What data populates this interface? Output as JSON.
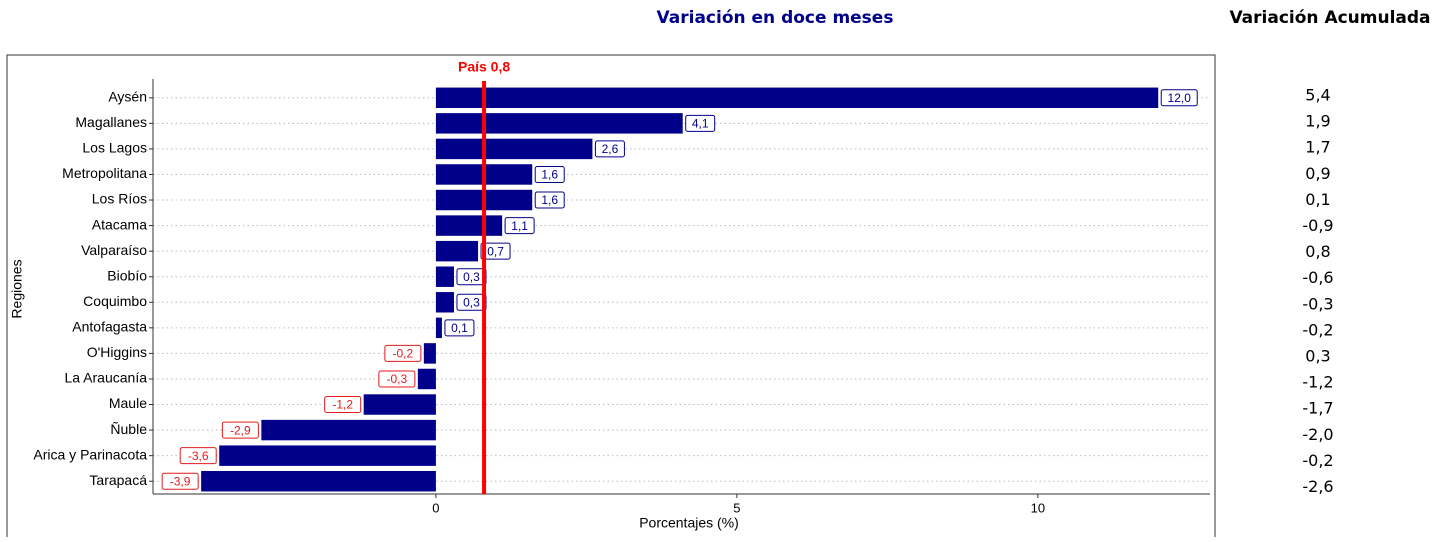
{
  "chart_data": {
    "type": "bar",
    "orientation": "horizontal",
    "title": "Variación en doce meses",
    "x_label": "Porcentajes (%)",
    "y_label": "Regiones",
    "categories": [
      "Aysén",
      "Magallanes",
      "Los Lagos",
      "Metropolitana",
      "Los Ríos",
      "Atacama",
      "Valparaíso",
      "Biobío",
      "Coquimbo",
      "Antofagasta",
      "O'Higgins",
      "La Araucanía",
      "Maule",
      "Ñuble",
      "Arica y Parinacota",
      "Tarapacá"
    ],
    "values": [
      12.0,
      4.1,
      2.6,
      1.6,
      1.6,
      1.1,
      0.7,
      0.3,
      0.3,
      0.1,
      -0.2,
      -0.3,
      -1.2,
      -2.9,
      -3.6,
      -3.9
    ],
    "value_labels": [
      "12,0",
      "4,1",
      "2,6",
      "1,6",
      "1,6",
      "1,1",
      "0,7",
      "0,3",
      "0,3",
      "0,1",
      "-0,2",
      "-0,3",
      "-1,2",
      "-2,9",
      "-3,6",
      "-3,9"
    ],
    "color": "#00008b",
    "positive_label_color": "#00008b",
    "negative_label_color": "#e41a1c",
    "xlim": [
      -4.7,
      12.86
    ],
    "xticks": [
      0,
      5,
      10
    ],
    "reference_line": {
      "value": 0.8,
      "label": "País 0,8",
      "color": "#ff0000"
    }
  },
  "side_column": {
    "title": "Variación Acumulada",
    "values": [
      "5,4",
      "1,9",
      "1,7",
      "0,9",
      "0,1",
      "-0,9",
      "0,8",
      "-0,6",
      "-0,3",
      "-0,2",
      "0,3",
      "-1,2",
      "-1,7",
      "-2,0",
      "-0,2",
      "-2,6"
    ]
  }
}
